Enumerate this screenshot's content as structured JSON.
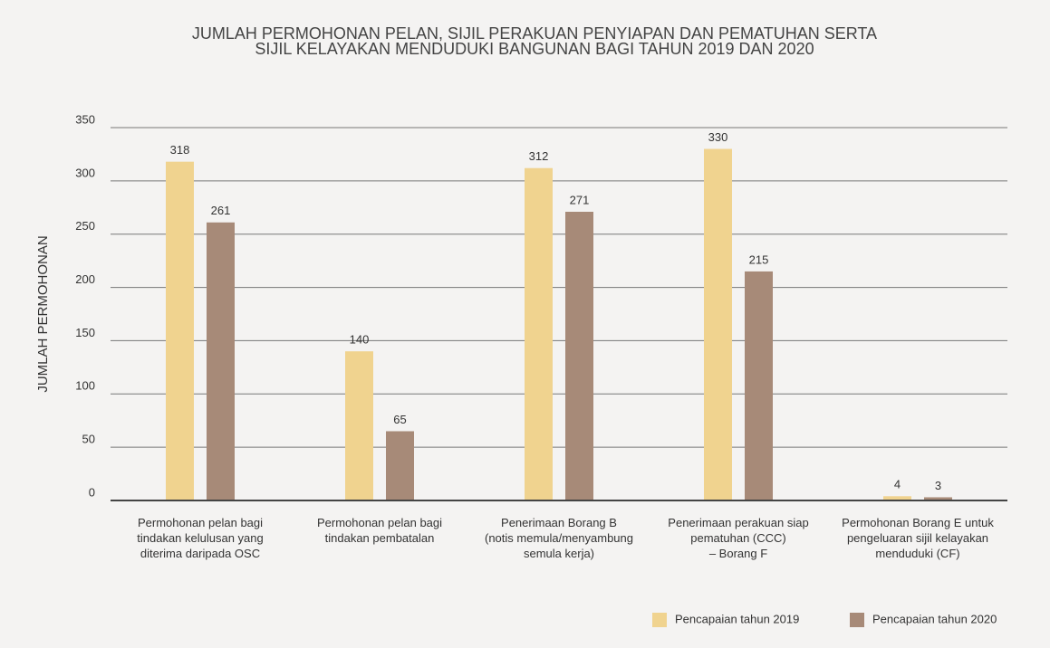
{
  "chart_data": {
    "type": "bar",
    "title": "JUMLAH PERMOHONAN PELAN, SIJIL PERAKUAN PENYIAPAN DAN PEMATUHAN SERTA\nSIJIL KELAYAKAN MENDUDUKI BANGUNAN BAGI TAHUN 2019 DAN 2020",
    "y_label": "JUMLAH PERMOHONAN",
    "categories": [
      "Permohonan pelan bagi\ntindakan kelulusan yang\nditerima daripada OSC",
      "Permohonan pelan bagi\ntindakan pembatalan",
      "Penerimaan Borang B\n(notis memula/menyambung\nsemula kerja)",
      "Penerimaan perakuan siap\npematuhan (CCC)\n– Borang F",
      "Permohonan Borang E untuk\npengeluaran sijil kelayakan\nmenduduki (CF)"
    ],
    "series": [
      {
        "name": "Pencapaian tahun 2019",
        "color": "#f0d38f",
        "values": [
          318,
          140,
          312,
          330,
          4
        ]
      },
      {
        "name": "Pencapaian tahun 2020",
        "color": "#a78a78",
        "values": [
          261,
          65,
          271,
          215,
          3
        ]
      }
    ],
    "ylim": [
      0,
      350
    ],
    "yticks": [
      0,
      50,
      100,
      150,
      200,
      250,
      300,
      350
    ],
    "grid": true,
    "legend": "bottom-right"
  }
}
